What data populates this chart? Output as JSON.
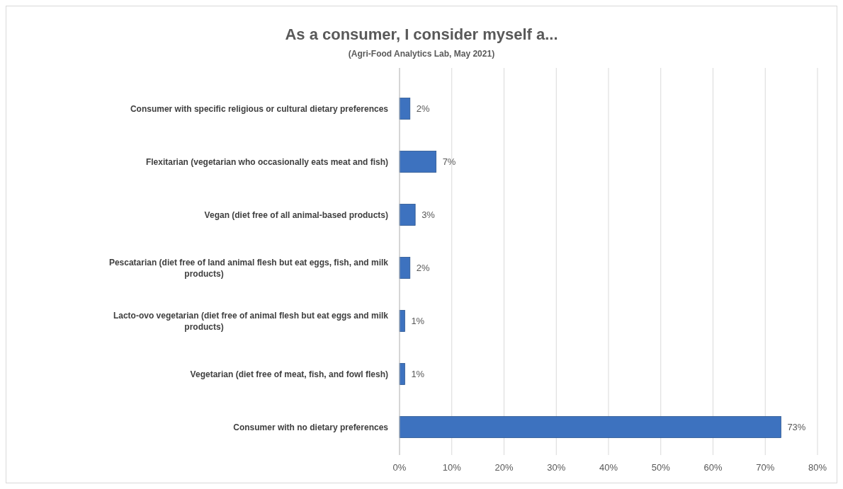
{
  "chart_data": {
    "type": "bar",
    "orientation": "horizontal",
    "title": "As a consumer, I consider myself a...",
    "subtitle": "(Agri-Food Analytics Lab, May 2021)",
    "categories": [
      "Consumer with specific religious or cultural dietary preferences",
      "Flexitarian (vegetarian who occasionally eats meat and fish)",
      "Vegan (diet free of all animal-based products)",
      "Pescatarian (diet free of land animal flesh but eat eggs, fish, and milk products)",
      "Lacto-ovo vegetarian (diet free of animal flesh but eat eggs and milk products)",
      "Vegetarian (diet free of meat, fish, and fowl flesh)",
      "Consumer with no dietary preferences"
    ],
    "values": [
      2,
      7,
      3,
      2,
      1,
      1,
      73
    ],
    "value_labels": [
      "2%",
      "7%",
      "3%",
      "2%",
      "1%",
      "1%",
      "73%"
    ],
    "color": "#3d72bf",
    "xlim": [
      0,
      80
    ],
    "xticks": [
      {
        "value": 0,
        "label": "0%"
      },
      {
        "value": 10,
        "label": "10%"
      },
      {
        "value": 20,
        "label": "20%"
      },
      {
        "value": 30,
        "label": "30%"
      },
      {
        "value": 40,
        "label": "40%"
      },
      {
        "value": 50,
        "label": "50%"
      },
      {
        "value": 60,
        "label": "60%"
      },
      {
        "value": 70,
        "label": "70%"
      },
      {
        "value": 80,
        "label": "80%"
      }
    ],
    "grid": "x"
  }
}
